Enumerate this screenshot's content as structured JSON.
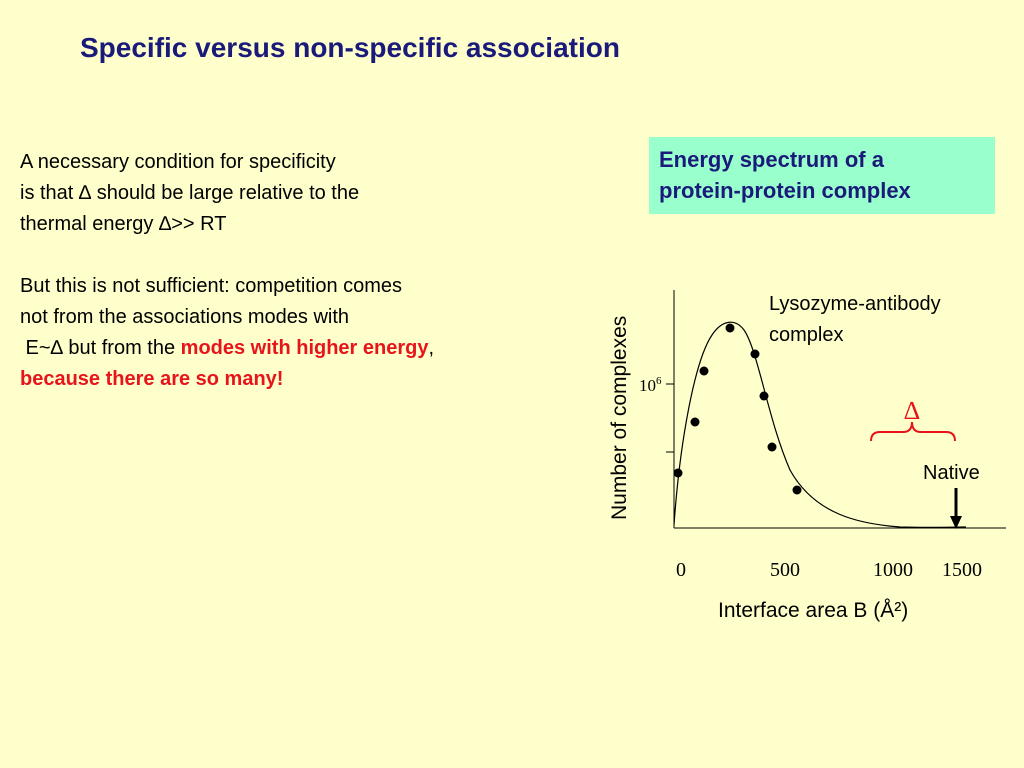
{
  "title": "Specific versus non-specific association",
  "paragraph1": {
    "line1": "A necessary condition for specificity",
    "line2": "is that ∆ should be large relative to the",
    "line3": "thermal energy ∆>> RT"
  },
  "paragraph2": {
    "line1": "But this is not sufficient: competition comes",
    "line2": "not from the associations modes with",
    "line3_pre": " E~∆ but from the ",
    "line3_red": "modes with higher energy",
    "line3_post": ",",
    "line4_red": "because there are so many!"
  },
  "box": {
    "line1": "Energy spectrum of a",
    "line2": "protein-protein complex"
  },
  "chart_data": {
    "type": "scatter",
    "ylabel": "Number of complexes",
    "xlabel": "Interface area B (Å²)",
    "x_ticks": [
      "0",
      "500",
      "1000",
      "1500"
    ],
    "y_tick_base": "10",
    "y_tick_exp": "6",
    "series_label_line1": "Lysozyme-antibody",
    "series_label_line2": "complex",
    "native_label": "Native",
    "delta_symbol": "∆",
    "x_native": 1500
  }
}
